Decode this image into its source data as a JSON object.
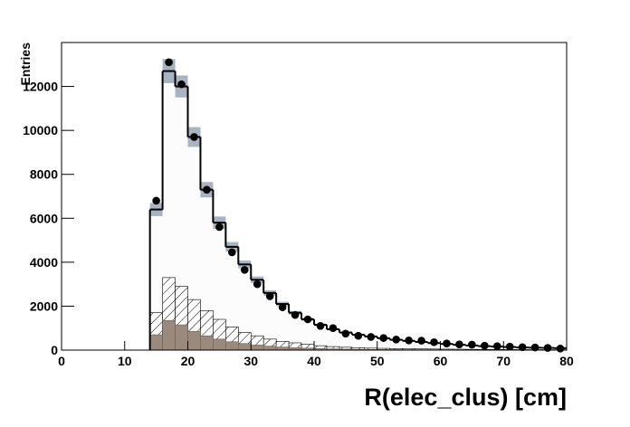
{
  "chart_data": {
    "type": "histogram",
    "xlabel": "R(elec_clus) [cm]",
    "ylabel": "Entries",
    "xlim": [
      0,
      80
    ],
    "ylim": [
      0,
      14000
    ],
    "xticks": [
      0,
      10,
      20,
      30,
      40,
      50,
      60,
      70,
      80
    ],
    "yticks": [
      0,
      2000,
      4000,
      6000,
      8000,
      10000,
      12000
    ],
    "bins": [
      14,
      16,
      18,
      20,
      22,
      24,
      26,
      28,
      30,
      32,
      34,
      36,
      38,
      40,
      42,
      44,
      46,
      48,
      50,
      52,
      54,
      56,
      58,
      60,
      62,
      64,
      66,
      68,
      70,
      72,
      74,
      76,
      78,
      80
    ],
    "series": [
      {
        "style": "step",
        "color": "#000000",
        "fill": "#fcfcfc",
        "band_color": "#a8b4c2",
        "values": [
          6400,
          12700,
          12000,
          9700,
          7300,
          5800,
          4700,
          3900,
          3200,
          2600,
          2100,
          1700,
          1400,
          1150,
          950,
          800,
          700,
          620,
          540,
          470,
          420,
          370,
          320,
          280,
          240,
          210,
          180,
          160,
          140,
          120,
          110,
          100,
          90
        ],
        "errors": [
          300,
          550,
          500,
          450,
          350,
          280,
          220,
          180,
          150,
          120,
          100,
          80,
          70,
          55,
          45,
          40,
          35,
          30,
          28,
          26,
          24,
          22,
          20,
          18,
          16,
          15,
          14,
          13,
          12,
          11,
          10,
          10,
          10
        ]
      },
      {
        "style": "hatch",
        "color": "#000000",
        "values": [
          1700,
          3300,
          2900,
          2300,
          1800,
          1400,
          1050,
          800,
          650,
          500,
          400,
          330,
          260,
          200,
          160,
          130,
          110,
          90,
          80,
          70,
          60,
          55,
          50,
          45,
          40,
          35,
          30,
          28,
          25,
          22,
          20,
          18,
          16
        ]
      },
      {
        "style": "fill",
        "color": "#9a8a7e",
        "values": [
          700,
          1350,
          1150,
          850,
          650,
          500,
          380,
          300,
          230,
          180,
          140,
          110,
          90,
          70,
          55,
          45,
          35,
          30,
          25,
          22,
          20,
          18,
          16,
          14,
          12,
          11,
          10,
          9,
          8,
          7,
          6,
          5,
          5
        ]
      },
      {
        "style": "points",
        "color": "#000000",
        "values": [
          6800,
          13100,
          12100,
          9700,
          7300,
          5600,
          4450,
          3650,
          3000,
          2450,
          1950,
          1600,
          1400,
          1100,
          1000,
          750,
          650,
          600,
          550,
          480,
          440,
          430,
          360,
          300,
          260,
          250,
          200,
          180,
          160,
          130,
          120,
          100,
          70
        ]
      }
    ]
  }
}
